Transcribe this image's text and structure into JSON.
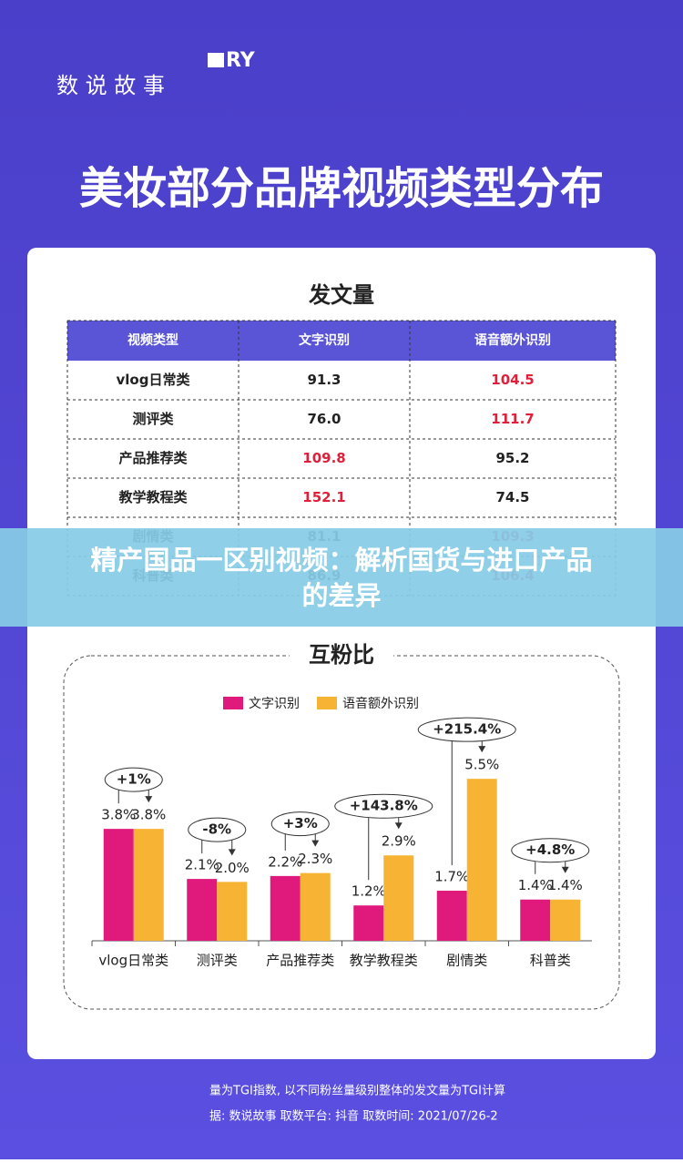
{
  "header": {
    "brand": "数 说 故 事",
    "logo": "RY"
  },
  "title": "美妆部分品牌视频类型分布",
  "table": {
    "title": "发文量",
    "columns": [
      "视频类型",
      "文字识别",
      "语音额外识别"
    ],
    "rows": [
      [
        "vlog日常类",
        "91.3",
        "104.5"
      ],
      [
        "测评类",
        "76.0",
        "111.7"
      ],
      [
        "产品推荐类",
        "109.8",
        "95.2"
      ],
      [
        "教学教程类",
        "152.1",
        "74.5"
      ],
      [
        "剧情类",
        "81.1",
        "109.3"
      ],
      [
        "科普类",
        "86.9",
        "106.4"
      ]
    ],
    "highlight": [
      2,
      2,
      1,
      1,
      2,
      2
    ],
    "highlight_color": "#e0203a"
  },
  "banner": {
    "lines": [
      "精产国品一区别视频：解析国货与进口产品",
      "的差异"
    ]
  },
  "chart_data": {
    "type": "bar",
    "title": "互粉比",
    "categories": [
      "vlog日常类",
      "测评类",
      "产品推荐类",
      "教学教程类",
      "剧情类",
      "科普类"
    ],
    "series": [
      {
        "name": "文字识别",
        "color": "#e0197d",
        "values": [
          3.8,
          2.1,
          2.2,
          1.2,
          1.7,
          1.4
        ],
        "value_labels": [
          "3.8%",
          "2.1%",
          "2.2%",
          "1.2%",
          "1.7%",
          "1.4%"
        ]
      },
      {
        "name": "语音额外识别",
        "color": "#f7b334",
        "values": [
          3.8,
          2.0,
          2.3,
          2.9,
          5.5,
          1.4
        ],
        "value_labels": [
          "3.8%",
          "2.0%",
          "2.3%",
          "2.9%",
          "5.5%",
          "1.4%"
        ]
      }
    ],
    "annotations": [
      "+1%",
      "-8%",
      "+3%",
      "+143.8%",
      "+215.4%",
      "+4.8%"
    ],
    "ylim": [
      0,
      6
    ],
    "legend": "top"
  },
  "footer": {
    "lines": [
      "量为TGI指数, 以不同粉丝量级别整体的发文量为TGI计算",
      "据: 数说故事   取数平台: 抖音   取数时间: 2021/07/26-2"
    ]
  }
}
